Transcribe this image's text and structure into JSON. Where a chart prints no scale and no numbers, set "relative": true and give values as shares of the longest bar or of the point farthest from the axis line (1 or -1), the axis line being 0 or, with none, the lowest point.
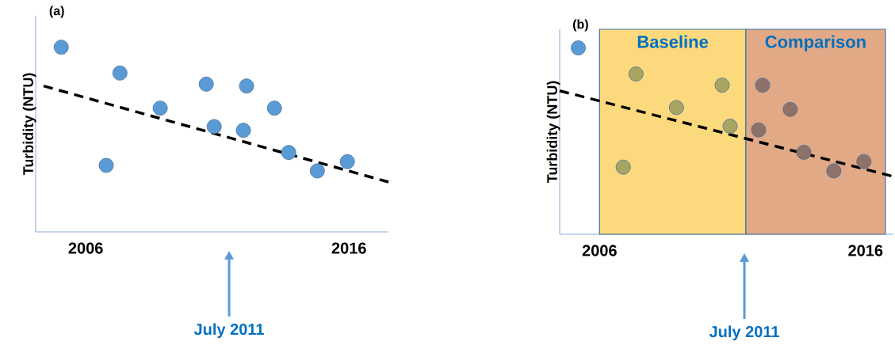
{
  "chart_data": [
    {
      "type": "scatter",
      "title": "(a)",
      "ylabel": "Turbidity (NTU)",
      "relative": true,
      "xlim": [
        2004.1,
        2017.5
      ],
      "xticks": [
        2006,
        2016
      ],
      "series": [
        {
          "type": "scatter",
          "marker": "circle",
          "color": "#5b9bd5",
          "x": [
            2005.07,
            2006.78,
            2007.3,
            2008.83,
            2010.58,
            2010.88,
            2011.99,
            2012.11,
            2013.17,
            2013.71,
            2014.8,
            2015.94
          ],
          "values": [
            1,
            0.36,
            0.86,
            0.67,
            0.8,
            0.57,
            0.55,
            0.79,
            0.67,
            0.43,
            0.33,
            0.38
          ]
        },
        {
          "type": "line",
          "marker": "none",
          "line_style": "dashed",
          "color": "#000000",
          "x": [
            2004.4,
            2017.5
          ],
          "values": [
            0.79,
            0.27
          ]
        }
      ],
      "annotations": [
        "July 2011"
      ]
    },
    {
      "type": "scatter",
      "title": "(b)",
      "ylabel": "Turbidity (NTU)",
      "relative": true,
      "xlim": [
        2004.5,
        2017.05
      ],
      "xticks": [
        2006,
        2016
      ],
      "series": [
        {
          "type": "scatter",
          "marker": "circle",
          "colors": [
            "#5b9bd5",
            "#a8a563",
            "#a8a563",
            "#a8a563",
            "#a8a563",
            "#a8a563",
            "#8e7169",
            "#8e7169",
            "#8e7169",
            "#8e7169",
            "#8e7169",
            "#8e7169"
          ],
          "x": [
            2005.2,
            2006.89,
            2007.37,
            2008.89,
            2010.61,
            2010.91,
            2011.98,
            2012.13,
            2013.17,
            2013.68,
            2014.81,
            2015.94
          ],
          "values": [
            1,
            0.36,
            0.86,
            0.68,
            0.8,
            0.58,
            0.56,
            0.8,
            0.67,
            0.44,
            0.34,
            0.39
          ]
        },
        {
          "type": "line",
          "marker": "none",
          "line_style": "dashed",
          "color": "#000000",
          "x": [
            2004.5,
            2017.05
          ],
          "values": [
            0.77,
            0.31
          ]
        }
      ],
      "bands": [
        {
          "axis": "x",
          "from": 2006,
          "to": 2011.5,
          "label": "Baseline",
          "color": "#fdd97d"
        },
        {
          "axis": "x",
          "from": 2011.5,
          "to": 2016.75,
          "label": "Comparison",
          "color": "#e2a986"
        }
      ],
      "annotations": [
        "July 2011"
      ]
    }
  ]
}
